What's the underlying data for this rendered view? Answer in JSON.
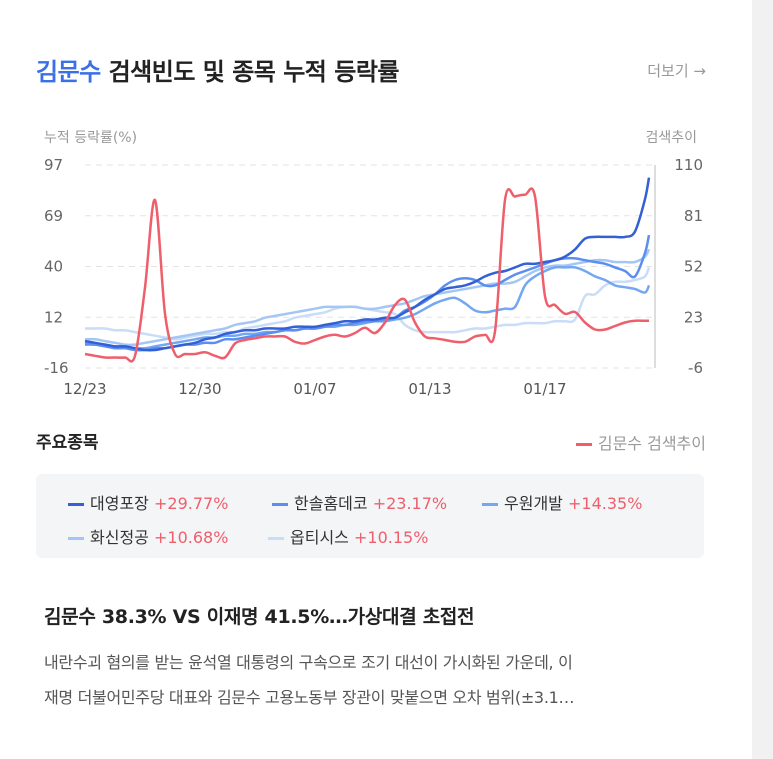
{
  "header": {
    "keyword": "김문수",
    "title_rest": " 검색빈도 및 종목 누적 등락률",
    "more_label": "더보기 →"
  },
  "chart_data": {
    "type": "line",
    "y_left_label": "누적 등락률(%)",
    "y_right_label": "검색추이",
    "y_left_ticks": [
      "97",
      "69",
      "40",
      "12",
      "-16"
    ],
    "y_right_ticks": [
      "110",
      "81",
      "52",
      "23",
      "-6"
    ],
    "y_left_range": [
      -16,
      97
    ],
    "y_right_range": [
      -6,
      110
    ],
    "x_ticks": [
      "12/23",
      "12/30",
      "01/07",
      "01/13",
      "01/17"
    ],
    "grid": true,
    "series": [
      {
        "name": "대영포장",
        "change": "+29.77%",
        "color": "#3360d4",
        "axis": "left",
        "x": [
          0,
          10,
          20,
          30,
          40,
          50,
          60,
          70,
          80,
          90,
          100,
          110,
          120,
          130,
          140,
          150,
          160,
          170,
          180,
          190,
          200,
          210,
          220,
          230,
          240,
          250,
          260,
          270,
          280,
          290,
          300,
          310,
          320,
          330,
          340,
          350,
          360,
          370,
          380,
          390,
          400,
          410,
          420,
          430,
          440,
          450,
          460,
          470,
          480,
          490,
          500,
          510,
          520,
          530,
          540,
          550,
          560,
          564
        ],
        "y": [
          -1,
          -2,
          -3,
          -4,
          -4,
          -5,
          -6,
          -6,
          -5,
          -4,
          -3,
          -2,
          0,
          1,
          3,
          4,
          5,
          5,
          6,
          6,
          6,
          7,
          7,
          7,
          8,
          9,
          10,
          10,
          11,
          11,
          12,
          12,
          15,
          18,
          22,
          25,
          28,
          29,
          30,
          32,
          35,
          37,
          38,
          40,
          42,
          42,
          43,
          44,
          46,
          50,
          56,
          57,
          57,
          57,
          57,
          60,
          78,
          90
        ]
      },
      {
        "name": "한솔홈데코",
        "change": "+23.17%",
        "color": "#5b8ef0",
        "axis": "left",
        "x": [
          0,
          10,
          20,
          30,
          40,
          50,
          60,
          70,
          80,
          90,
          100,
          110,
          120,
          130,
          140,
          150,
          160,
          170,
          180,
          190,
          200,
          210,
          220,
          230,
          240,
          250,
          260,
          270,
          280,
          290,
          300,
          310,
          320,
          330,
          340,
          350,
          360,
          370,
          380,
          390,
          400,
          410,
          420,
          430,
          440,
          450,
          460,
          470,
          480,
          490,
          500,
          510,
          520,
          530,
          540,
          550,
          560,
          564
        ],
        "y": [
          -3,
          -3,
          -4,
          -5,
          -5,
          -6,
          -6,
          -5,
          -5,
          -4,
          -3,
          -3,
          -2,
          -2,
          0,
          0,
          1,
          2,
          3,
          4,
          5,
          5,
          6,
          6,
          7,
          8,
          8,
          9,
          10,
          10,
          11,
          12,
          16,
          18,
          21,
          25,
          30,
          33,
          34,
          33,
          30,
          30,
          33,
          36,
          38,
          40,
          42,
          44,
          45,
          45,
          44,
          43,
          42,
          40,
          38,
          35,
          48,
          58
        ]
      },
      {
        "name": "우원개발",
        "change": "+14.35%",
        "color": "#74a7f2",
        "axis": "left",
        "x": [
          0,
          10,
          20,
          30,
          40,
          50,
          60,
          70,
          80,
          90,
          100,
          110,
          120,
          130,
          140,
          150,
          160,
          170,
          180,
          190,
          200,
          210,
          220,
          230,
          240,
          250,
          260,
          270,
          280,
          290,
          300,
          310,
          320,
          330,
          340,
          350,
          360,
          370,
          380,
          390,
          400,
          410,
          420,
          430,
          440,
          450,
          460,
          470,
          480,
          490,
          500,
          510,
          520,
          530,
          540,
          550,
          560,
          564
        ],
        "y": [
          -2,
          -3,
          -3,
          -4,
          -4,
          -5,
          -5,
          -4,
          -3,
          -2,
          -1,
          0,
          1,
          1,
          2,
          2,
          3,
          3,
          4,
          4,
          5,
          5,
          6,
          6,
          7,
          7,
          8,
          8,
          9,
          10,
          10,
          11,
          12,
          14,
          17,
          20,
          22,
          23,
          20,
          16,
          15,
          16,
          17,
          18,
          30,
          35,
          38,
          40,
          40,
          40,
          38,
          35,
          33,
          30,
          29,
          28,
          26,
          30
        ]
      },
      {
        "name": "화신정공",
        "change": "+10.68%",
        "color": "#a4c6f5",
        "axis": "left",
        "x": [
          0,
          10,
          20,
          30,
          40,
          50,
          60,
          70,
          80,
          90,
          100,
          110,
          120,
          130,
          140,
          150,
          160,
          170,
          180,
          190,
          200,
          210,
          220,
          230,
          240,
          250,
          260,
          270,
          280,
          290,
          300,
          310,
          320,
          330,
          340,
          350,
          360,
          370,
          380,
          390,
          400,
          410,
          420,
          430,
          440,
          450,
          460,
          470,
          480,
          490,
          500,
          510,
          520,
          530,
          540,
          550,
          560,
          564
        ],
        "y": [
          0,
          0,
          -1,
          -2,
          -3,
          -3,
          -2,
          -1,
          0,
          1,
          2,
          3,
          4,
          5,
          6,
          8,
          9,
          10,
          12,
          13,
          14,
          15,
          16,
          17,
          18,
          18,
          18,
          18,
          17,
          17,
          18,
          19,
          20,
          22,
          24,
          25,
          26,
          27,
          28,
          29,
          30,
          31,
          31,
          32,
          35,
          38,
          40,
          41,
          41,
          42,
          43,
          44,
          44,
          43,
          43,
          43,
          46,
          50
        ]
      },
      {
        "name": "옵티시스",
        "change": "+10.15%",
        "color": "#c9dcf8",
        "axis": "left",
        "x": [
          0,
          10,
          20,
          30,
          40,
          50,
          60,
          70,
          80,
          90,
          100,
          110,
          120,
          130,
          140,
          150,
          160,
          170,
          180,
          190,
          200,
          210,
          220,
          230,
          240,
          250,
          260,
          270,
          280,
          290,
          300,
          310,
          320,
          330,
          340,
          350,
          360,
          370,
          380,
          390,
          400,
          410,
          420,
          430,
          440,
          450,
          460,
          470,
          480,
          490,
          500,
          510,
          520,
          530,
          540,
          550,
          560,
          564
        ],
        "y": [
          6,
          6,
          6,
          5,
          5,
          4,
          3,
          2,
          1,
          0,
          1,
          2,
          3,
          3,
          4,
          4,
          6,
          7,
          8,
          9,
          10,
          12,
          13,
          14,
          15,
          17,
          18,
          18,
          17,
          16,
          15,
          14,
          8,
          5,
          4,
          4,
          4,
          4,
          5,
          6,
          6,
          7,
          8,
          8,
          9,
          9,
          9,
          10,
          10,
          11,
          24,
          25,
          30,
          32,
          32,
          33,
          35,
          40
        ]
      },
      {
        "name": "김문수 검색추이",
        "color": "#ef5e6b",
        "axis": "right",
        "x": [
          0,
          10,
          20,
          30,
          40,
          50,
          60,
          70,
          80,
          90,
          100,
          110,
          120,
          130,
          140,
          150,
          160,
          170,
          180,
          190,
          200,
          210,
          220,
          230,
          240,
          250,
          260,
          270,
          280,
          290,
          300,
          310,
          320,
          330,
          340,
          350,
          360,
          370,
          380,
          390,
          400,
          410,
          420,
          430,
          440,
          450,
          460,
          470,
          480,
          490,
          500,
          510,
          520,
          530,
          540,
          550,
          560,
          564
        ],
        "y": [
          2,
          1,
          0,
          0,
          0,
          1,
          40,
          90,
          25,
          2,
          2,
          2,
          3,
          1,
          0,
          8,
          10,
          11,
          12,
          12,
          12,
          9,
          8,
          10,
          12,
          13,
          12,
          14,
          17,
          14,
          20,
          30,
          33,
          20,
          12,
          11,
          10,
          9,
          9,
          12,
          13,
          15,
          90,
          92,
          93,
          92,
          35,
          30,
          25,
          26,
          20,
          16,
          16,
          18,
          20,
          21,
          21,
          21
        ]
      }
    ]
  },
  "section": {
    "title": "주요종목",
    "search_legend": "김문수 검색추이"
  },
  "legend": [
    {
      "name": "대영포장",
      "change": "+29.77%"
    },
    {
      "name": "한솔홈데코",
      "change": "+23.17%"
    },
    {
      "name": "우원개발",
      "change": "+14.35%"
    },
    {
      "name": "화신정공",
      "change": "+10.68%"
    },
    {
      "name": "옵티시스",
      "change": "+10.15%"
    }
  ],
  "news": {
    "title": "김문수 38.3% VS 이재명 41.5%…가상대결 초접전",
    "body_line1": "내란수괴 혐의를 받는 윤석열 대통령의 구속으로 조기 대선이 가시화된 가운데, 이",
    "body_line2": "재명 더불어민주당 대표와 김문수 고용노동부 장관이 맞붙으면 오차 범위(±3.1…"
  },
  "colors": {
    "keyword": "#3a6fe8",
    "positive": "#ef5e6b"
  }
}
